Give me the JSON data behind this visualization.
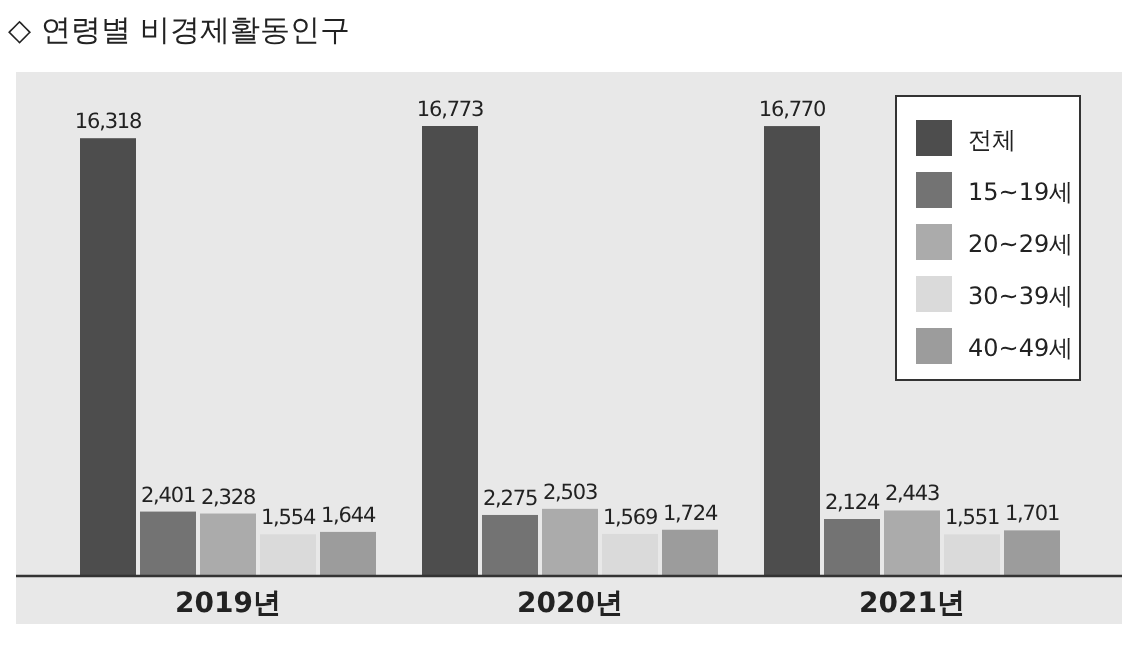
{
  "chart_data": {
    "type": "bar",
    "title": "◇ 연령별 비경제활동인구",
    "categories": [
      "2019년",
      "2020년",
      "2021년"
    ],
    "series": [
      {
        "name": "전체",
        "color": "#4d4d4d",
        "values": [
          16318,
          16773,
          16770
        ],
        "value_labels": [
          "16,318",
          "16,773",
          "16,770"
        ]
      },
      {
        "name": "15~19세",
        "color": "#737373",
        "values": [
          2401,
          2275,
          2124
        ],
        "value_labels": [
          "2,401",
          "2,275",
          "2,124"
        ]
      },
      {
        "name": "20~29세",
        "color": "#ababab",
        "values": [
          2328,
          2503,
          2443
        ],
        "value_labels": [
          "2,328",
          "2,503",
          "2,443"
        ]
      },
      {
        "name": "30~39세",
        "color": "#dadada",
        "values": [
          1554,
          1569,
          1551
        ],
        "value_labels": [
          "1,554",
          "1,569",
          "1,551"
        ]
      },
      {
        "name": "40~49세",
        "color": "#9c9c9c",
        "values": [
          1644,
          1724,
          1701
        ],
        "value_labels": [
          "1,644",
          "1,724",
          "1,701"
        ]
      }
    ],
    "legend": "top right"
  }
}
